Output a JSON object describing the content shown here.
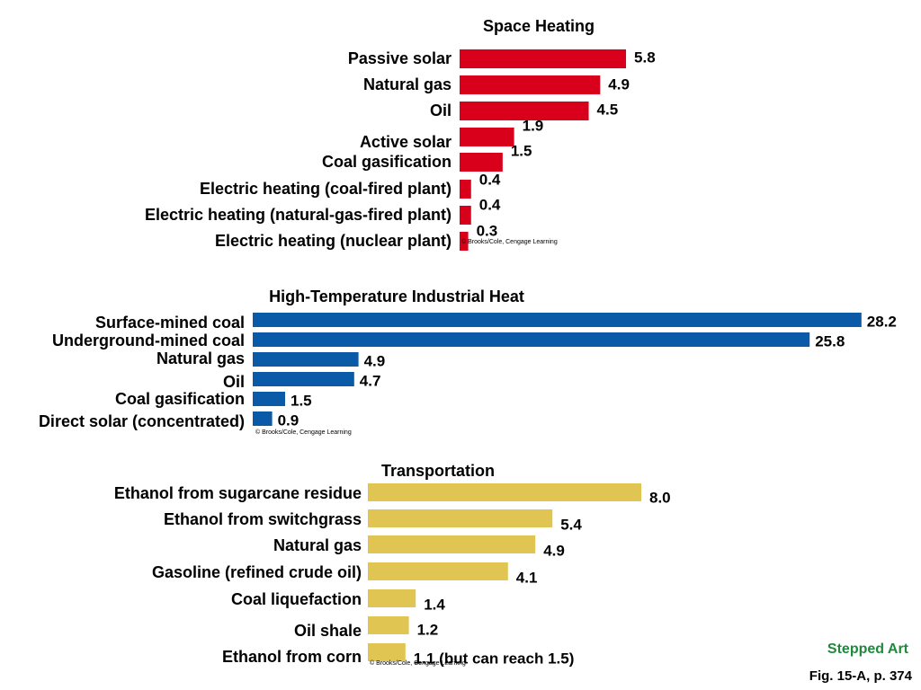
{
  "chart_data": [
    {
      "type": "bar",
      "title": "Space Heating",
      "categories": [
        "Passive solar",
        "Natural gas",
        "Oil",
        "Active solar",
        "Coal gasification",
        "Electric heating (coal-fired plant)",
        "Electric heating (natural-gas-fired plant)",
        "Electric heating (nuclear plant)"
      ],
      "values": [
        5.8,
        4.9,
        4.5,
        1.9,
        1.5,
        0.4,
        0.4,
        0.3
      ],
      "value_labels": [
        "5.8",
        "4.9",
        "4.5",
        "1.9",
        "1.5",
        "0.4",
        "0.4",
        "0.3"
      ],
      "color": "#d9001b",
      "credit": "© Brooks/Cole, Cengage Learning"
    },
    {
      "type": "bar",
      "title": "High-Temperature Industrial Heat",
      "categories": [
        "Surface-mined coal",
        "Underground-mined coal",
        "Natural gas",
        "Oil",
        "Coal gasification",
        "Direct solar (concentrated)"
      ],
      "values": [
        28.2,
        25.8,
        4.9,
        4.7,
        1.5,
        0.9
      ],
      "value_labels": [
        "28.2",
        "25.8",
        "4.9",
        "4.7",
        "1.5",
        "0.9"
      ],
      "color": "#0b5aa8",
      "credit": "© Brooks/Cole, Cengage Learning"
    },
    {
      "type": "bar",
      "title": "Transportation",
      "categories": [
        "Ethanol from sugarcane residue",
        "Ethanol from switchgrass",
        "Natural gas",
        "Gasoline (refined crude oil)",
        "Coal liquefaction",
        "Oil shale",
        "Ethanol from corn"
      ],
      "values": [
        8.0,
        5.4,
        4.9,
        4.1,
        1.4,
        1.2,
        1.1
      ],
      "value_labels": [
        "8.0",
        "5.4",
        "4.9",
        "4.1",
        "1.4",
        "1.2",
        "1.1 (but can reach 1.5)"
      ],
      "color": "#e0c552",
      "credit": "© Brooks/Cole, Cengage Learning"
    }
  ],
  "footer": {
    "stepped_art": "Stepped Art",
    "figure_ref": "Fig. 15-A, p. 374"
  }
}
